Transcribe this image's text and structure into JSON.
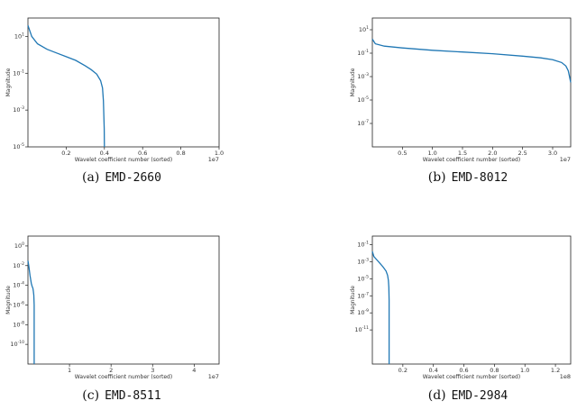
{
  "chart_data": [
    {
      "type": "line",
      "caption_label": "(a)",
      "caption_name": "EMD-2660",
      "xlabel": "Wavelet coefficient number (sorted)",
      "ylabel": "Magnitude",
      "x_multiplier": "1e7",
      "xlim": [
        0,
        1.0
      ],
      "ylim_exp": [
        -5,
        2
      ],
      "xticks": [
        {
          "v": 0.2,
          "label": "0.2"
        },
        {
          "v": 0.4,
          "label": "0.4"
        },
        {
          "v": 0.6,
          "label": "0.6"
        },
        {
          "v": 0.8,
          "label": "0.8"
        },
        {
          "v": 1.0,
          "label": "1.0"
        }
      ],
      "yticks": [
        {
          "e": 1,
          "label": "10",
          "sup": "1"
        },
        {
          "e": -1,
          "label": "10",
          "sup": "-1"
        },
        {
          "e": -3,
          "label": "10",
          "sup": "-3"
        },
        {
          "e": -5,
          "label": "10",
          "sup": "-5"
        }
      ],
      "series": [
        {
          "color": "#1f77b4",
          "x": [
            0,
            0.02,
            0.05,
            0.1,
            0.15,
            0.2,
            0.25,
            0.3,
            0.33,
            0.36,
            0.38,
            0.39,
            0.395,
            0.399,
            0.4
          ],
          "y_exp": [
            1.6,
            1.0,
            0.6,
            0.3,
            0.1,
            -0.1,
            -0.3,
            -0.6,
            -0.8,
            -1.05,
            -1.4,
            -1.8,
            -2.5,
            -4.0,
            -5.0
          ]
        }
      ]
    },
    {
      "type": "line",
      "caption_label": "(b)",
      "caption_name": "EMD-8012",
      "xlabel": "Wavelet coefficient number (sorted)",
      "ylabel": "Magnitude",
      "x_multiplier": "1e7",
      "xlim": [
        0,
        3.3
      ],
      "ylim_exp": [
        -9,
        2
      ],
      "xticks": [
        {
          "v": 0.5,
          "label": "0.5"
        },
        {
          "v": 1.0,
          "label": "1.0"
        },
        {
          "v": 1.5,
          "label": "1.5"
        },
        {
          "v": 2.0,
          "label": "2.0"
        },
        {
          "v": 2.5,
          "label": "2.5"
        },
        {
          "v": 3.0,
          "label": "3.0"
        }
      ],
      "yticks": [
        {
          "e": 1,
          "label": "10",
          "sup": "1"
        },
        {
          "e": -1,
          "label": "10",
          "sup": "-1"
        },
        {
          "e": -3,
          "label": "10",
          "sup": "-3"
        },
        {
          "e": -5,
          "label": "10",
          "sup": "-5"
        },
        {
          "e": -7,
          "label": "10",
          "sup": "-7"
        }
      ],
      "series": [
        {
          "color": "#1f77b4",
          "x": [
            0,
            0.05,
            0.2,
            0.5,
            1.0,
            1.5,
            2.0,
            2.5,
            2.8,
            3.0,
            3.15,
            3.22,
            3.26,
            3.28,
            3.3
          ],
          "y_exp": [
            0.2,
            -0.2,
            -0.4,
            -0.55,
            -0.75,
            -0.9,
            -1.05,
            -1.25,
            -1.4,
            -1.55,
            -1.8,
            -2.1,
            -2.5,
            -3.0,
            -3.5
          ]
        }
      ]
    },
    {
      "type": "line",
      "caption_label": "(c)",
      "caption_name": "EMD-8511",
      "xlabel": "Wavelet coefficient number (sorted)",
      "ylabel": "Magnitude",
      "x_multiplier": "1e7",
      "xlim": [
        0,
        4.6
      ],
      "ylim_exp": [
        -12,
        1
      ],
      "xticks": [
        {
          "v": 1,
          "label": "1"
        },
        {
          "v": 2,
          "label": "2"
        },
        {
          "v": 3,
          "label": "3"
        },
        {
          "v": 4,
          "label": "4"
        }
      ],
      "yticks": [
        {
          "e": 0,
          "label": "10",
          "sup": "0"
        },
        {
          "e": -2,
          "label": "10",
          "sup": "-2"
        },
        {
          "e": -4,
          "label": "10",
          "sup": "-4"
        },
        {
          "e": -6,
          "label": "10",
          "sup": "-6"
        },
        {
          "e": -8,
          "label": "10",
          "sup": "-8"
        },
        {
          "e": -10,
          "label": "10",
          "sup": "-10"
        }
      ],
      "series": [
        {
          "color": "#1f77b4",
          "x": [
            0,
            0.02,
            0.05,
            0.08,
            0.1,
            0.12,
            0.13,
            0.14,
            0.15,
            0.15
          ],
          "y_exp": [
            -1.5,
            -2.0,
            -3.0,
            -3.8,
            -4.1,
            -4.3,
            -4.6,
            -5.0,
            -6.0,
            -12.0
          ]
        }
      ]
    },
    {
      "type": "line",
      "caption_label": "(d)",
      "caption_name": "EMD-2984",
      "xlabel": "Wavelet coefficient number (sorted)",
      "ylabel": "Magnitude",
      "x_multiplier": "1e8",
      "xlim": [
        0,
        1.3
      ],
      "ylim_exp": [
        -15,
        0
      ],
      "xticks": [
        {
          "v": 0.2,
          "label": "0.2"
        },
        {
          "v": 0.4,
          "label": "0.4"
        },
        {
          "v": 0.6,
          "label": "0.6"
        },
        {
          "v": 0.8,
          "label": "0.8"
        },
        {
          "v": 1.0,
          "label": "1.0"
        },
        {
          "v": 1.2,
          "label": "1.2"
        }
      ],
      "yticks": [
        {
          "e": -1,
          "label": "10",
          "sup": "-1"
        },
        {
          "e": -3,
          "label": "10",
          "sup": "-3"
        },
        {
          "e": -5,
          "label": "10",
          "sup": "-5"
        },
        {
          "e": -7,
          "label": "10",
          "sup": "-7"
        },
        {
          "e": -9,
          "label": "10",
          "sup": "-9"
        },
        {
          "e": -11,
          "label": "10",
          "sup": "-11"
        }
      ],
      "series": [
        {
          "color": "#1f77b4",
          "x": [
            0,
            0.01,
            0.03,
            0.05,
            0.07,
            0.09,
            0.1,
            0.105,
            0.108,
            0.11,
            0.11
          ],
          "y_exp": [
            -1.8,
            -2.4,
            -2.8,
            -3.2,
            -3.6,
            -4.1,
            -4.6,
            -5.2,
            -6.0,
            -7.5,
            -15.0
          ]
        }
      ]
    }
  ]
}
